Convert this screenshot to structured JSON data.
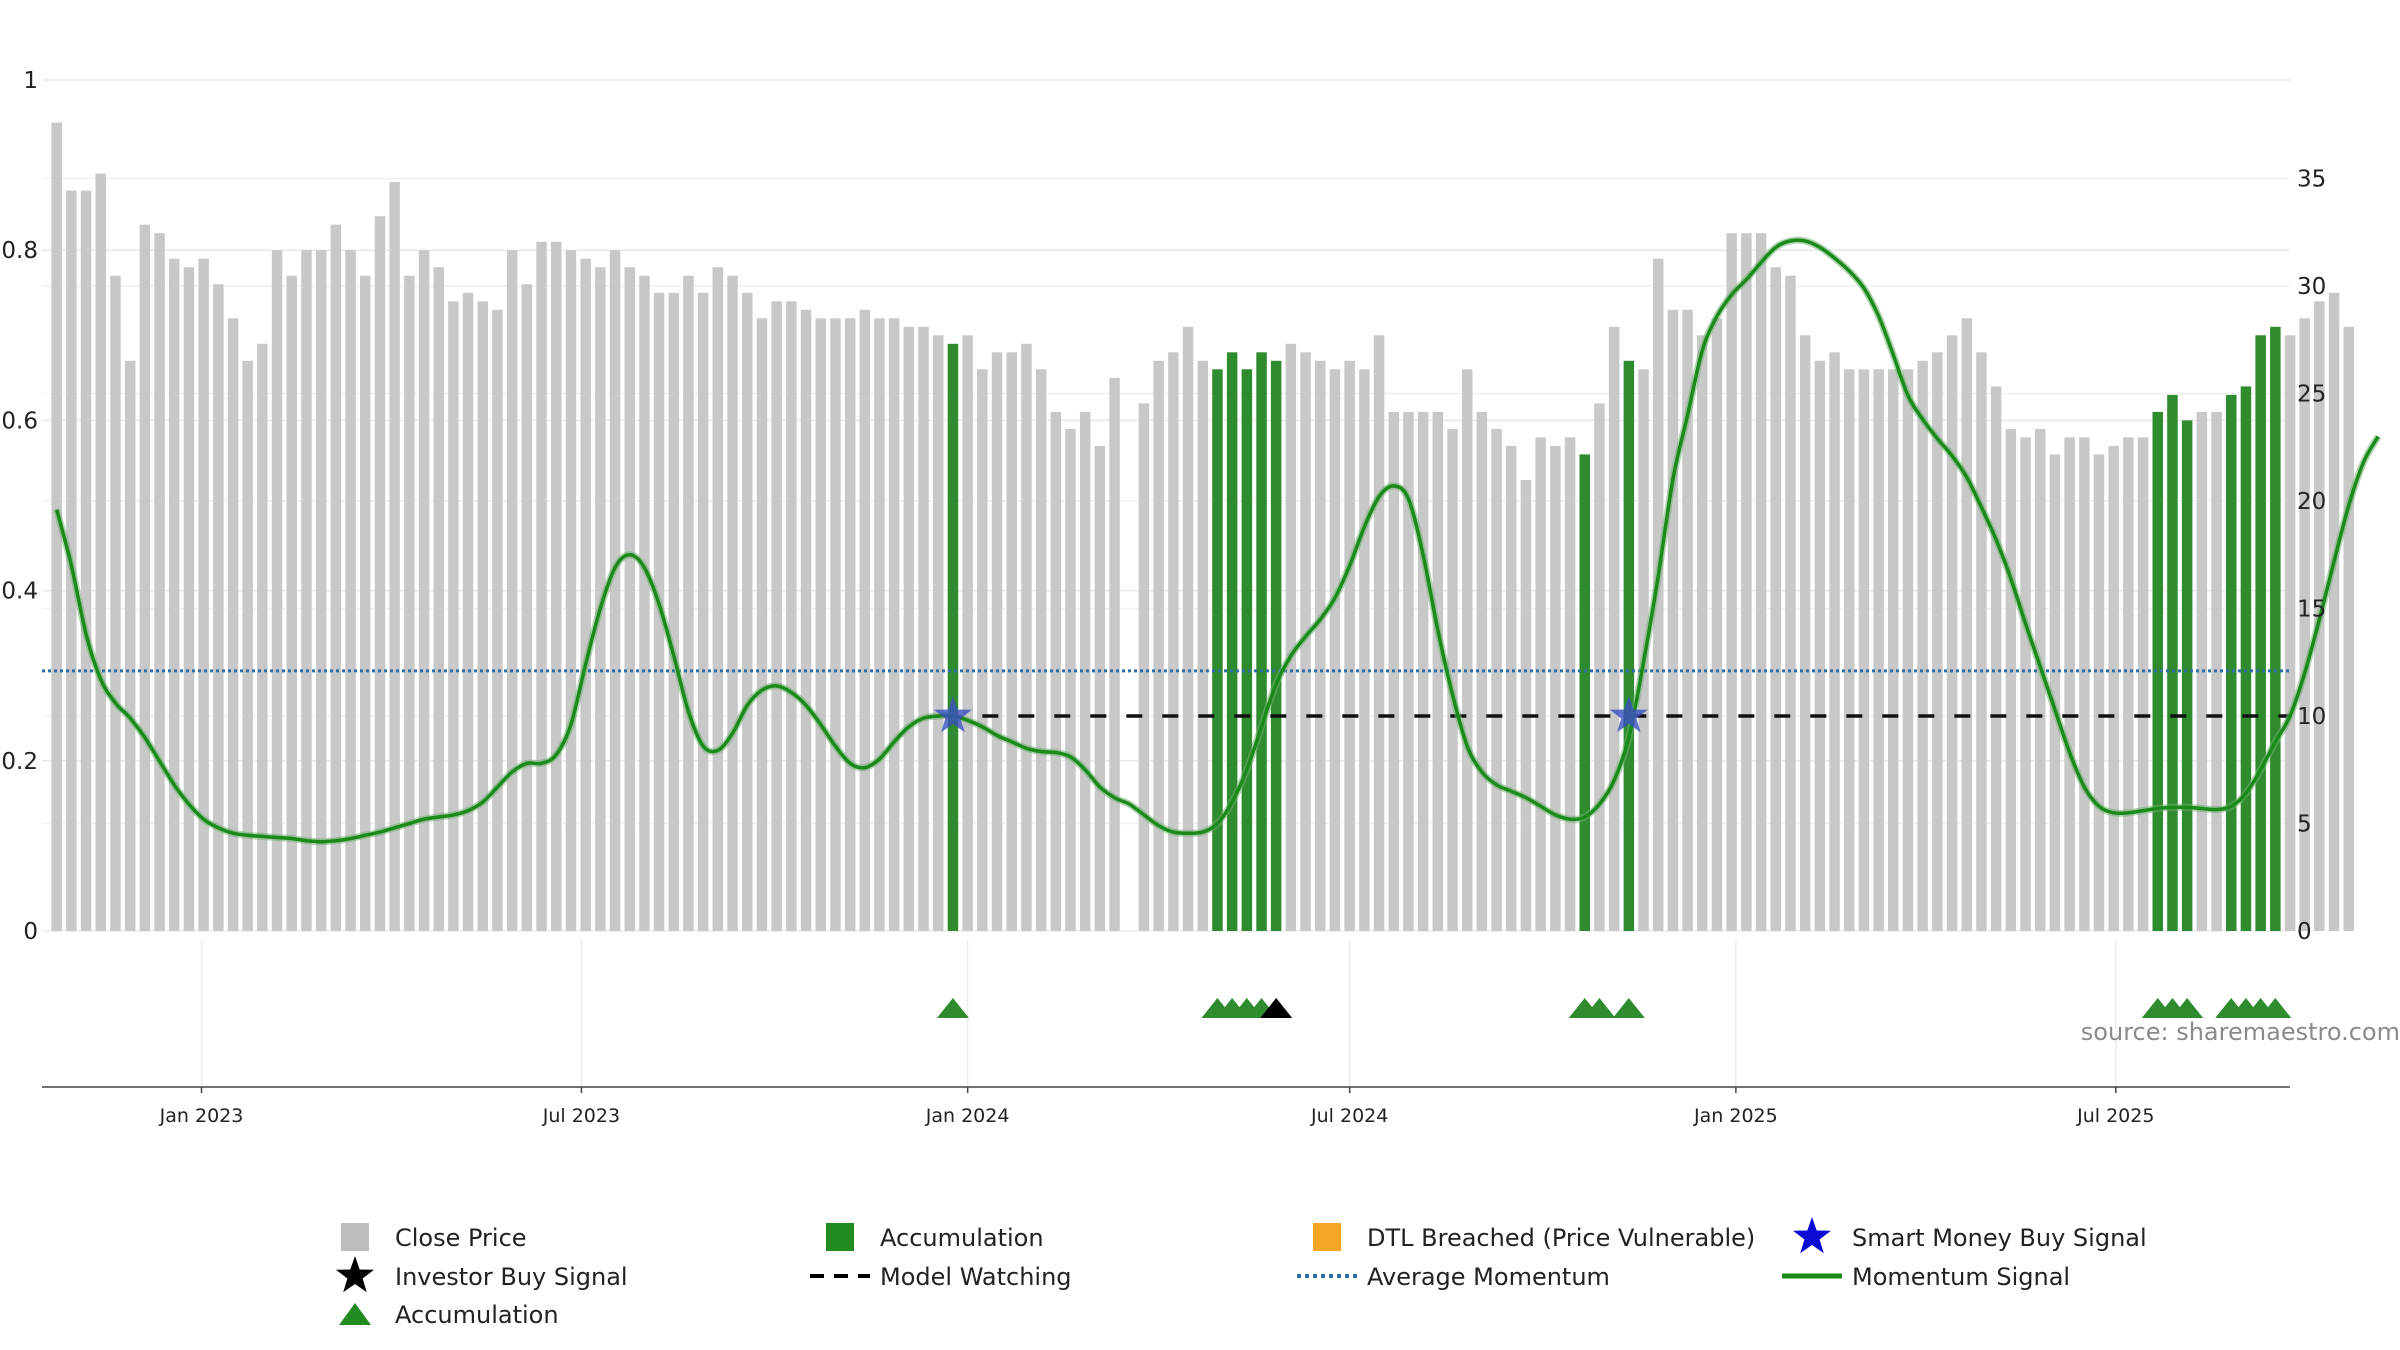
{
  "chart_data": {
    "type": "bar",
    "left_axis": {
      "ylim": [
        0,
        1
      ],
      "ticks": [
        "0",
        "0.2",
        "0.4",
        "0.6",
        "0.8",
        "1"
      ]
    },
    "right_axis": {
      "ylim": [
        0,
        35
      ],
      "ticks": [
        "0",
        "5",
        "10",
        "15",
        "20",
        "25",
        "30",
        "35"
      ]
    },
    "x_axis": {
      "range": [
        "2022-10-17",
        "2025-09-22"
      ],
      "ticks": [
        {
          "label": "Jan 2023",
          "date": "2023-01-01"
        },
        {
          "label": "Jul 2023",
          "date": "2023-07-01"
        },
        {
          "label": "Jan 2024",
          "date": "2024-01-01"
        },
        {
          "label": "Jul 2024",
          "date": "2024-07-01"
        },
        {
          "label": "Jan 2025",
          "date": "2025-01-01"
        },
        {
          "label": "Jul 2025",
          "date": "2025-07-01"
        }
      ]
    },
    "grid": true,
    "start_date": "2022-10-24",
    "close_price": [
      0.95,
      0.87,
      0.87,
      0.89,
      0.77,
      0.67,
      0.83,
      0.82,
      0.79,
      0.78,
      0.79,
      0.76,
      0.72,
      0.67,
      0.69,
      0.8,
      0.77,
      0.8,
      0.8,
      0.83,
      0.8,
      0.77,
      0.84,
      0.88,
      0.77,
      0.8,
      0.78,
      0.74,
      0.75,
      0.74,
      0.73,
      0.8,
      0.76,
      0.81,
      0.81,
      0.8,
      0.79,
      0.78,
      0.8,
      0.78,
      0.77,
      0.75,
      0.75,
      0.77,
      0.75,
      0.78,
      0.77,
      0.75,
      0.72,
      0.74,
      0.74,
      0.73,
      0.72,
      0.72,
      0.72,
      0.73,
      0.72,
      0.72,
      0.71,
      0.71,
      0.7,
      0.69,
      0.7,
      0.66,
      0.68,
      0.68,
      0.69,
      0.66,
      0.61,
      0.59,
      0.61,
      0.57,
      0.65,
      null,
      0.62,
      0.67,
      0.68,
      0.71,
      0.67,
      0.66,
      0.68,
      0.66,
      0.68,
      0.67,
      0.69,
      0.68,
      0.67,
      0.66,
      0.67,
      0.66,
      0.7,
      0.61,
      0.61,
      0.61,
      0.61,
      0.59,
      0.66,
      0.61,
      0.59,
      0.57,
      0.53,
      0.58,
      0.57,
      0.58,
      0.56,
      0.62,
      0.71,
      0.67,
      0.66,
      0.79,
      0.73,
      0.73,
      0.7,
      0.72,
      0.82,
      0.82,
      0.82,
      0.78,
      0.77,
      0.7,
      0.67,
      0.68,
      0.66,
      0.66,
      0.66,
      0.66,
      0.66,
      0.67,
      0.68,
      0.7,
      0.72,
      0.68,
      0.64,
      0.59,
      0.58,
      0.59,
      0.56,
      0.58,
      0.58,
      0.56,
      0.57,
      0.58,
      0.58,
      0.61,
      0.63,
      0.6,
      0.61,
      0.61,
      0.63,
      0.64,
      0.7,
      0.71,
      0.7,
      0.72,
      0.74,
      0.75,
      0.71
    ],
    "accumulation_weeks": [
      61,
      79,
      80,
      81,
      82,
      83,
      104,
      107,
      143,
      144,
      145,
      148,
      149,
      150,
      151
    ],
    "accumulation_triangles": [
      61,
      79,
      80,
      81,
      82,
      104,
      105,
      107,
      143,
      144,
      145,
      148,
      149,
      150,
      151
    ],
    "investor_buy_signal_weeks": [
      83
    ],
    "smart_money_buy_signal": [
      {
        "week": 61,
        "value": 10
      },
      {
        "week": 107,
        "value": 10
      }
    ],
    "model_watching": {
      "value": 10,
      "start_week": 63
    },
    "average_momentum": 12.1,
    "momentum_signal": [
      [
        0,
        19.6
      ],
      [
        1,
        17.0
      ],
      [
        2,
        13.8
      ],
      [
        3,
        11.7
      ],
      [
        4,
        10.6
      ],
      [
        5,
        9.9
      ],
      [
        6,
        9.0
      ],
      [
        7,
        7.9
      ],
      [
        8,
        6.8
      ],
      [
        9,
        5.9
      ],
      [
        10,
        5.2
      ],
      [
        11,
        4.8
      ],
      [
        12,
        4.55
      ],
      [
        13,
        4.45
      ],
      [
        14,
        4.4
      ],
      [
        15,
        4.35
      ],
      [
        16,
        4.3
      ],
      [
        17,
        4.2
      ],
      [
        18,
        4.15
      ],
      [
        19,
        4.2
      ],
      [
        20,
        4.3
      ],
      [
        21,
        4.45
      ],
      [
        22,
        4.6
      ],
      [
        23,
        4.8
      ],
      [
        24,
        5.0
      ],
      [
        25,
        5.2
      ],
      [
        26,
        5.3
      ],
      [
        27,
        5.4
      ],
      [
        28,
        5.6
      ],
      [
        29,
        6.0
      ],
      [
        30,
        6.7
      ],
      [
        31,
        7.4
      ],
      [
        32,
        7.8
      ],
      [
        33,
        7.8
      ],
      [
        34,
        8.2
      ],
      [
        35,
        9.6
      ],
      [
        36,
        12.4
      ],
      [
        37,
        15.0
      ],
      [
        38,
        16.9
      ],
      [
        39,
        17.5
      ],
      [
        40,
        16.9
      ],
      [
        41,
        15.2
      ],
      [
        42,
        12.8
      ],
      [
        43,
        10.2
      ],
      [
        44,
        8.6
      ],
      [
        45,
        8.4
      ],
      [
        46,
        9.2
      ],
      [
        47,
        10.5
      ],
      [
        48,
        11.2
      ],
      [
        49,
        11.4
      ],
      [
        50,
        11.1
      ],
      [
        51,
        10.5
      ],
      [
        52,
        9.6
      ],
      [
        53,
        8.6
      ],
      [
        54,
        7.8
      ],
      [
        55,
        7.6
      ],
      [
        56,
        8.0
      ],
      [
        57,
        8.8
      ],
      [
        58,
        9.5
      ],
      [
        59,
        9.9
      ],
      [
        60,
        10.0
      ],
      [
        61,
        10.0
      ],
      [
        62,
        9.8
      ],
      [
        63,
        9.5
      ],
      [
        64,
        9.1
      ],
      [
        65,
        8.8
      ],
      [
        66,
        8.5
      ],
      [
        67,
        8.35
      ],
      [
        68,
        8.3
      ],
      [
        69,
        8.1
      ],
      [
        70,
        7.5
      ],
      [
        71,
        6.7
      ],
      [
        72,
        6.2
      ],
      [
        73,
        5.9
      ],
      [
        74,
        5.4
      ],
      [
        75,
        4.9
      ],
      [
        76,
        4.6
      ],
      [
        77,
        4.55
      ],
      [
        78,
        4.6
      ],
      [
        79,
        5.0
      ],
      [
        80,
        6.0
      ],
      [
        81,
        7.5
      ],
      [
        82,
        9.5
      ],
      [
        83,
        11.5
      ],
      [
        84,
        12.8
      ],
      [
        85,
        13.7
      ],
      [
        86,
        14.5
      ],
      [
        87,
        15.5
      ],
      [
        88,
        17.0
      ],
      [
        89,
        18.8
      ],
      [
        90,
        20.2
      ],
      [
        91,
        20.7
      ],
      [
        92,
        20.1
      ],
      [
        93,
        17.5
      ],
      [
        94,
        14.0
      ],
      [
        95,
        11.0
      ],
      [
        96,
        8.6
      ],
      [
        97,
        7.4
      ],
      [
        98,
        6.8
      ],
      [
        99,
        6.5
      ],
      [
        100,
        6.2
      ],
      [
        101,
        5.8
      ],
      [
        102,
        5.4
      ],
      [
        103,
        5.2
      ],
      [
        104,
        5.3
      ],
      [
        105,
        5.9
      ],
      [
        106,
        7.0
      ],
      [
        107,
        9.0
      ],
      [
        108,
        12.5
      ],
      [
        109,
        16.5
      ],
      [
        110,
        21.0
      ],
      [
        111,
        24.0
      ],
      [
        112,
        27.0
      ],
      [
        113,
        28.6
      ],
      [
        114,
        29.6
      ],
      [
        115,
        30.3
      ],
      [
        116,
        31.1
      ],
      [
        117,
        31.8
      ],
      [
        118,
        32.1
      ],
      [
        119,
        32.1
      ],
      [
        120,
        31.8
      ],
      [
        121,
        31.3
      ],
      [
        122,
        30.7
      ],
      [
        123,
        29.9
      ],
      [
        124,
        28.6
      ],
      [
        125,
        26.8
      ],
      [
        126,
        24.9
      ],
      [
        127,
        23.8
      ],
      [
        128,
        22.9
      ],
      [
        129,
        22.1
      ],
      [
        130,
        21.1
      ],
      [
        131,
        19.7
      ],
      [
        132,
        18.2
      ],
      [
        133,
        16.4
      ],
      [
        134,
        14.3
      ],
      [
        135,
        12.3
      ],
      [
        136,
        10.3
      ],
      [
        137,
        8.3
      ],
      [
        138,
        6.7
      ],
      [
        139,
        5.8
      ],
      [
        140,
        5.5
      ],
      [
        141,
        5.5
      ],
      [
        142,
        5.6
      ],
      [
        143,
        5.7
      ],
      [
        144,
        5.75
      ],
      [
        145,
        5.75
      ],
      [
        146,
        5.7
      ],
      [
        147,
        5.65
      ],
      [
        148,
        5.8
      ],
      [
        149,
        6.4
      ],
      [
        150,
        7.5
      ],
      [
        151,
        8.8
      ],
      [
        152,
        10.0
      ],
      [
        153,
        12.0
      ],
      [
        154,
        14.5
      ],
      [
        155,
        17.2
      ],
      [
        156,
        19.8
      ],
      [
        157,
        21.8
      ],
      [
        158,
        23.0
      ]
    ],
    "legend": [
      {
        "label": "Close Price",
        "marker": "square",
        "color": "#bdbdbd"
      },
      {
        "label": "Accumulation",
        "marker": "square",
        "color": "#228b22"
      },
      {
        "label": "DTL Breached (Price Vulnerable)",
        "marker": "square",
        "color": "#f5a623"
      },
      {
        "label": "Smart Money Buy Signal",
        "marker": "star",
        "color": "#0b0bd6"
      },
      {
        "label": "Investor Buy Signal",
        "marker": "star",
        "color": "#000000"
      },
      {
        "label": "Model Watching",
        "marker": "dash",
        "color": "#000000"
      },
      {
        "label": "Average Momentum",
        "marker": "dotted",
        "color": "#2f6fa8"
      },
      {
        "label": "Momentum Signal",
        "marker": "line",
        "color": "#1a8a1a"
      },
      {
        "label": "Accumulation",
        "marker": "triangle",
        "color": "#228b22"
      }
    ],
    "legend_position": "bottom",
    "colors": {
      "close_price": "#c8c8c8",
      "accumulation": "#2e8b2e",
      "momentum": "#1a8a1a",
      "average_momentum": "#2f6fa8",
      "model_watching": "#111111",
      "smart_money": "#3a4fc0",
      "investor": "#000000"
    }
  },
  "source_label": "source: sharemaestro.com"
}
